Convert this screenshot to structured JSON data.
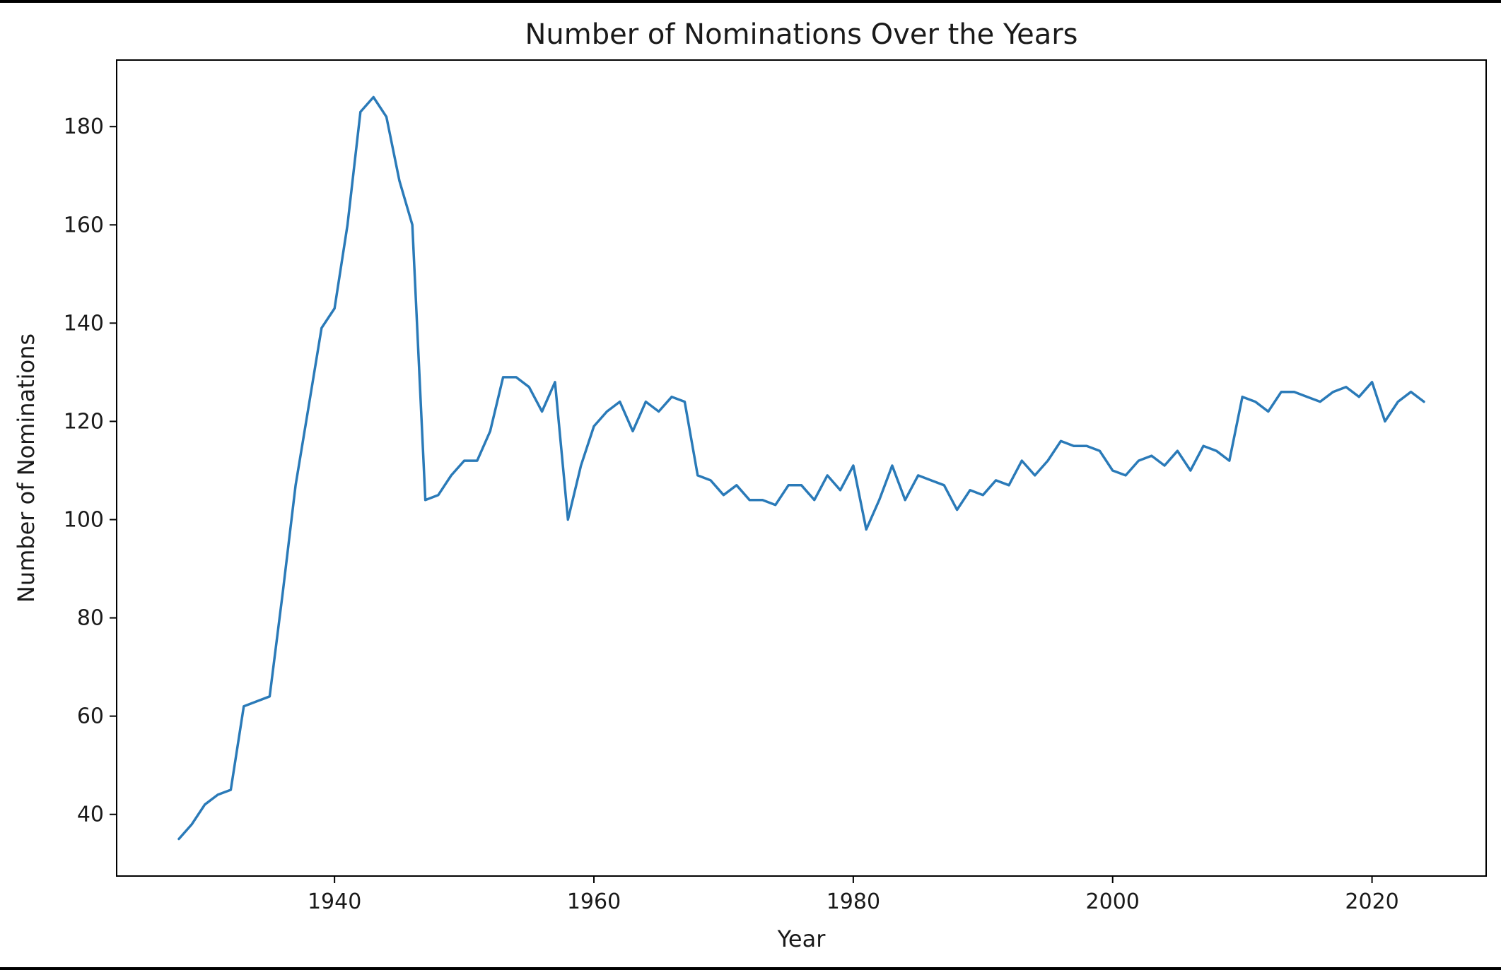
{
  "chart_data": {
    "type": "line",
    "title": "Number of Nominations Over the Years",
    "xlabel": "Year",
    "ylabel": "Number of Nominations",
    "xlim": [
      1923.2,
      2028.8
    ],
    "ylim": [
      27.45,
      193.55
    ],
    "xticks": [
      1940,
      1960,
      1980,
      2000,
      2020
    ],
    "yticks": [
      40,
      60,
      80,
      100,
      120,
      140,
      160,
      180
    ],
    "grid": false,
    "line_color": "#2a7ab8",
    "series": [
      {
        "x": [
          1928,
          1929,
          1930,
          1931,
          1932,
          1933,
          1934,
          1935,
          1936,
          1937,
          1938,
          1939,
          1940,
          1941,
          1942,
          1943,
          1944,
          1945,
          1946,
          1947,
          1948,
          1949,
          1950,
          1951,
          1952,
          1953,
          1954,
          1955,
          1956,
          1957,
          1958,
          1959,
          1960,
          1961,
          1962,
          1963,
          1964,
          1965,
          1966,
          1967,
          1968,
          1969,
          1970,
          1971,
          1972,
          1973,
          1974,
          1975,
          1976,
          1977,
          1978,
          1979,
          1980,
          1981,
          1982,
          1983,
          1984,
          1985,
          1986,
          1987,
          1988,
          1989,
          1990,
          1991,
          1992,
          1993,
          1994,
          1995,
          1996,
          1997,
          1998,
          1999,
          2000,
          2001,
          2002,
          2003,
          2004,
          2005,
          2006,
          2007,
          2008,
          2009,
          2010,
          2011,
          2012,
          2013,
          2014,
          2015,
          2016,
          2017,
          2018,
          2019,
          2020,
          2021,
          2022,
          2023,
          2024
        ],
        "values": [
          35,
          38,
          42,
          44,
          45,
          62,
          63,
          64,
          85,
          107,
          123,
          139,
          143,
          160,
          183,
          186,
          182,
          169,
          160,
          104,
          105,
          109,
          112,
          112,
          118,
          129,
          129,
          127,
          122,
          128,
          100,
          111,
          119,
          122,
          124,
          118,
          124,
          122,
          125,
          124,
          109,
          108,
          105,
          107,
          104,
          104,
          103,
          107,
          107,
          104,
          109,
          106,
          111,
          98,
          104,
          111,
          104,
          109,
          108,
          107,
          102,
          106,
          105,
          108,
          107,
          112,
          109,
          112,
          116,
          115,
          115,
          114,
          110,
          109,
          112,
          113,
          111,
          114,
          110,
          115,
          114,
          112,
          125,
          124,
          122,
          126,
          126,
          125,
          124,
          126,
          127,
          125,
          128,
          120,
          124,
          126,
          124
        ]
      }
    ]
  }
}
